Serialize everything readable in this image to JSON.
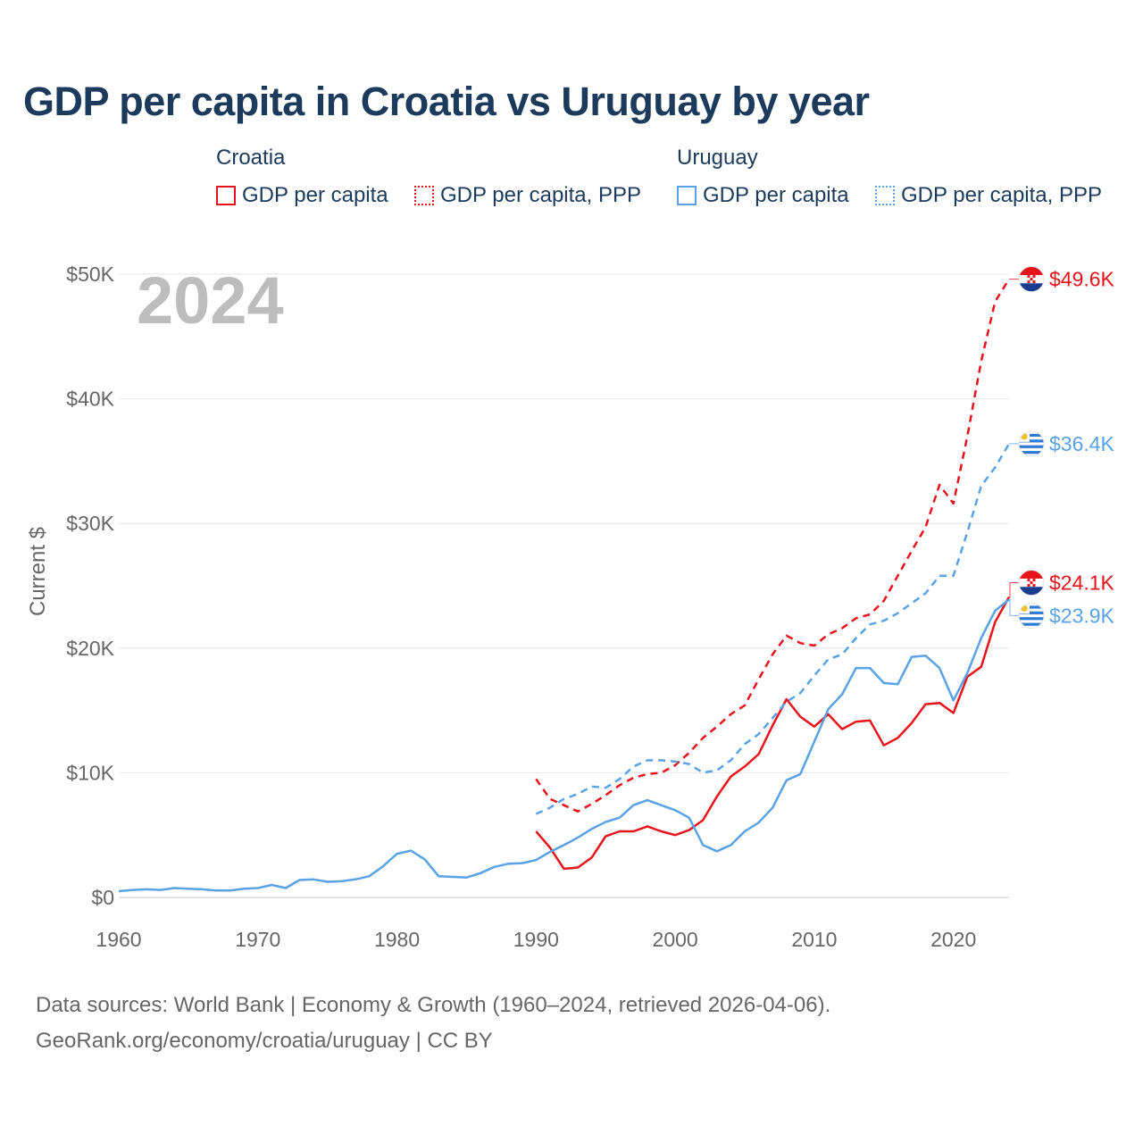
{
  "title": "GDP per capita in Croatia vs Uruguay by year",
  "legend": {
    "groups": [
      {
        "country": "Croatia",
        "items": [
          "GDP per capita",
          "GDP per capita, PPP"
        ]
      },
      {
        "country": "Uruguay",
        "items": [
          "GDP per capita",
          "GDP per capita, PPP"
        ]
      }
    ]
  },
  "colors": {
    "croatia": "#e8121a",
    "uruguay": "#5aa2e6"
  },
  "source": {
    "line1": "Data sources: World Bank | Economy & Growth (1960–2024, retrieved 2026-04-06).",
    "line2": "GeoRank.org/economy/croatia/uruguay | CC BY"
  },
  "chart_data": {
    "type": "line",
    "title": "GDP per capita in Croatia vs Uruguay by year",
    "year_watermark": "2024",
    "xlabel": "",
    "ylabel": "Current $",
    "xlim": [
      1960,
      2024
    ],
    "ylim": [
      0,
      50000
    ],
    "x_ticks": [
      1960,
      1970,
      1980,
      1990,
      2000,
      2010,
      2020
    ],
    "x_tick_labels": [
      "1960",
      "1970",
      "1980",
      "1990",
      "2000",
      "2010",
      "2020"
    ],
    "y_ticks": [
      0,
      10000,
      20000,
      30000,
      40000,
      50000
    ],
    "y_tick_labels": [
      "$0",
      "$10K",
      "$20K",
      "$30K",
      "$40K",
      "$50K"
    ],
    "grid": true,
    "series": [
      {
        "name": "Croatia GDP per capita",
        "country": "Croatia",
        "style": "solid",
        "start_year": 1990,
        "values": [
          5300,
          4000,
          2300,
          2400,
          3200,
          4900,
          5300,
          5300,
          5700,
          5300,
          5000,
          5400,
          6200,
          8100,
          9700,
          10500,
          11500,
          13800,
          15900,
          14500,
          13700,
          14700,
          13500,
          14100,
          14200,
          12200,
          12800,
          14000,
          15500,
          15600,
          14800,
          17700,
          18500,
          22100,
          24100
        ],
        "end_label": "$24.1K"
      },
      {
        "name": "Croatia GDP per capita, PPP",
        "country": "Croatia",
        "style": "dashed",
        "start_year": 1990,
        "values": [
          9500,
          7900,
          7400,
          6900,
          7500,
          8200,
          9000,
          9600,
          9900,
          10000,
          10600,
          11600,
          12800,
          13700,
          14700,
          15400,
          17500,
          19500,
          21000,
          20400,
          20200,
          21100,
          21600,
          22400,
          22700,
          23800,
          25800,
          27800,
          29700,
          33100,
          31600,
          37000,
          43000,
          47800,
          49600
        ],
        "end_label": "$49.6K"
      },
      {
        "name": "Uruguay GDP per capita",
        "country": "Uruguay",
        "style": "solid",
        "start_year": 1960,
        "values": [
          500,
          600,
          650,
          600,
          750,
          700,
          650,
          550,
          550,
          700,
          750,
          1000,
          750,
          1400,
          1450,
          1250,
          1300,
          1450,
          1700,
          2500,
          3500,
          3750,
          3050,
          1700,
          1650,
          1600,
          1950,
          2450,
          2700,
          2750,
          3000,
          3650,
          4200,
          4800,
          5500,
          6050,
          6400,
          7400,
          7800,
          7400,
          7000,
          6400,
          4200,
          3700,
          4200,
          5300,
          6000,
          7200,
          9400,
          9900,
          12500,
          15100,
          16300,
          18400,
          18400,
          17200,
          17100,
          19300,
          19400,
          18400,
          15800,
          18000,
          20800,
          23000,
          23900
        ],
        "end_label": "$23.9K"
      },
      {
        "name": "Uruguay GDP per capita, PPP",
        "country": "Uruguay",
        "style": "dashed",
        "start_year": 1990,
        "values": [
          6700,
          7200,
          7900,
          8300,
          8900,
          8800,
          9500,
          10500,
          11000,
          11000,
          10900,
          10700,
          10000,
          10200,
          11000,
          12300,
          13100,
          14400,
          15700,
          16400,
          17800,
          19100,
          19500,
          20800,
          21900,
          22200,
          22800,
          23600,
          24400,
          25800,
          25800,
          29300,
          33000,
          34500,
          36400
        ],
        "end_label": "$36.4K"
      }
    ]
  }
}
